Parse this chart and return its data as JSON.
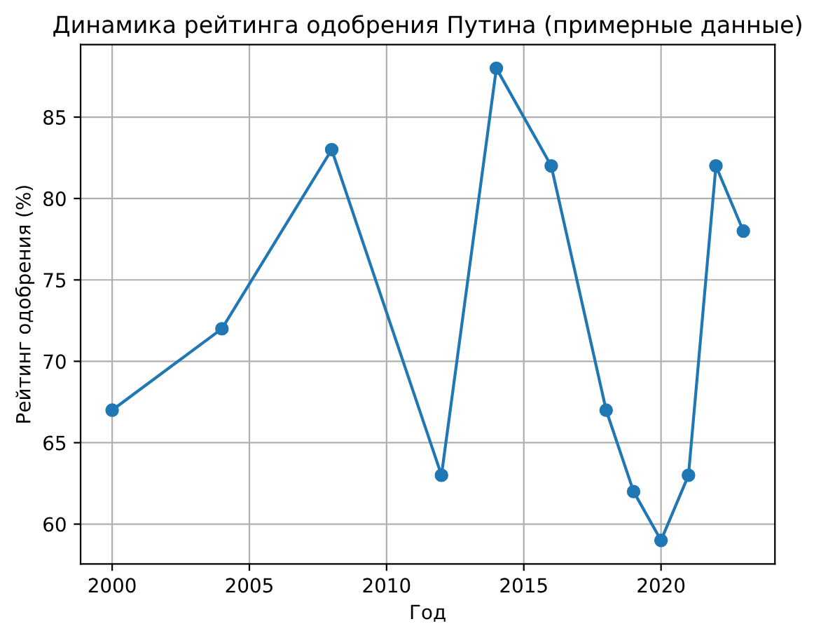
{
  "chart_data": {
    "type": "line",
    "title": "Динамика рейтинга одобрения Путина (примерные данные)",
    "xlabel": "Год",
    "ylabel": "Рейтинг одобрения (%)",
    "x": [
      2000,
      2004,
      2008,
      2012,
      2014,
      2016,
      2018,
      2019,
      2020,
      2021,
      2022,
      2023
    ],
    "series": [
      {
        "color": "#1f77b4",
        "values": [
          67,
          72,
          83,
          63,
          88,
          82,
          67,
          62,
          59,
          63,
          82,
          78
        ]
      }
    ],
    "xlim": [
      1998.85,
      2024.15
    ],
    "ylim": [
      57.55,
      89.45
    ],
    "xticks": [
      2000,
      2005,
      2010,
      2015,
      2020
    ],
    "yticks": [
      60,
      65,
      70,
      75,
      80,
      85
    ],
    "grid": true,
    "marker": "circle",
    "line_style": "solid"
  }
}
